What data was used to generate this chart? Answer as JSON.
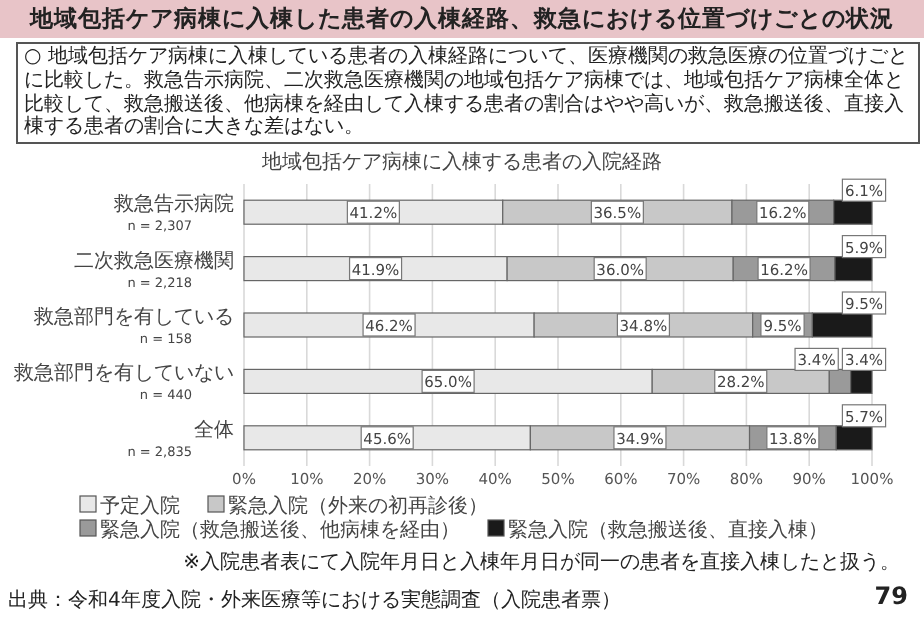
{
  "chart_data": {
    "type": "bar",
    "orientation": "horizontal",
    "stacked": true,
    "title": "地域包括ケア病棟に入棟した患者の入棟経路、救急における位置づけごとの状況",
    "subtitle": "地域包括ケア病棟に入棟する患者の入院経路",
    "annotations": [
      "○ 地域包括ケア病棟に入棟している患者の入棟経路について、医療機関の救急医療の位置づけごとに比較した。救急告示病院、二次救急医療機関の地域包括ケア病棟では、地域包括ケア病棟全体と比較して、救急搬送後、他病棟を経由して入棟する患者の割合はやや高いが、救急搬送後、直接入棟する患者の割合に大きな差はない。",
      "※入院患者表にて入院年月日と入棟年月日が同一の患者を直接入棟したと扱う。",
      "出典：令和4年度入院・外来医療等における実態調査（入院患者票）",
      "79"
    ],
    "categories": [
      "救急告示病院\nn = 2,307",
      "二次救急医療機関\nn = 2,218",
      "救急部門を有している\nn = 158",
      "救急部門を有していない\nn = 440",
      "全体\nn = 2,835"
    ],
    "series": [
      {
        "name": "予定入院",
        "color": "#e8e8e8",
        "values": [
          41.2,
          41.9,
          46.2,
          65.0,
          45.6
        ],
        "value_labels": [
          "41.2%",
          "41.9%",
          "46.2%",
          "65.0%",
          "45.6%"
        ]
      },
      {
        "name": "緊急入院（外来の初再診後）",
        "color": "#c8c8c8",
        "values": [
          36.5,
          36.0,
          34.8,
          28.2,
          34.9
        ],
        "value_labels": [
          "36.5%",
          "36.0%",
          "34.8%",
          "28.2%",
          "34.9%"
        ]
      },
      {
        "name": "緊急入院（救急搬送後、他病棟を経由）",
        "color": "#9a9a9a",
        "values": [
          16.2,
          16.2,
          9.5,
          3.4,
          13.8
        ],
        "value_labels": [
          "16.2%",
          "16.2%",
          "9.5%",
          "3.4%",
          "13.8%"
        ]
      },
      {
        "name": "緊急入院（救急搬送後、直接入棟）",
        "color": "#1a1a1a",
        "values": [
          6.1,
          5.9,
          9.5,
          3.4,
          5.7
        ],
        "value_labels": [
          "6.1%",
          "5.9%",
          "9.5%",
          "3.4%",
          "5.7%"
        ]
      }
    ],
    "xlim": [
      0,
      100
    ],
    "xticks": [
      {
        "value": 0,
        "label": "0%"
      },
      {
        "value": 10,
        "label": "10%"
      },
      {
        "value": 20,
        "label": "20%"
      },
      {
        "value": 30,
        "label": "30%"
      },
      {
        "value": 40,
        "label": "40%"
      },
      {
        "value": 50,
        "label": "50%"
      },
      {
        "value": 60,
        "label": "60%"
      },
      {
        "value": 70,
        "label": "70%"
      },
      {
        "value": 80,
        "label": "80%"
      },
      {
        "value": 90,
        "label": "90%"
      },
      {
        "value": 100,
        "label": "100%"
      }
    ],
    "grid": "x",
    "legend": "bottom"
  }
}
